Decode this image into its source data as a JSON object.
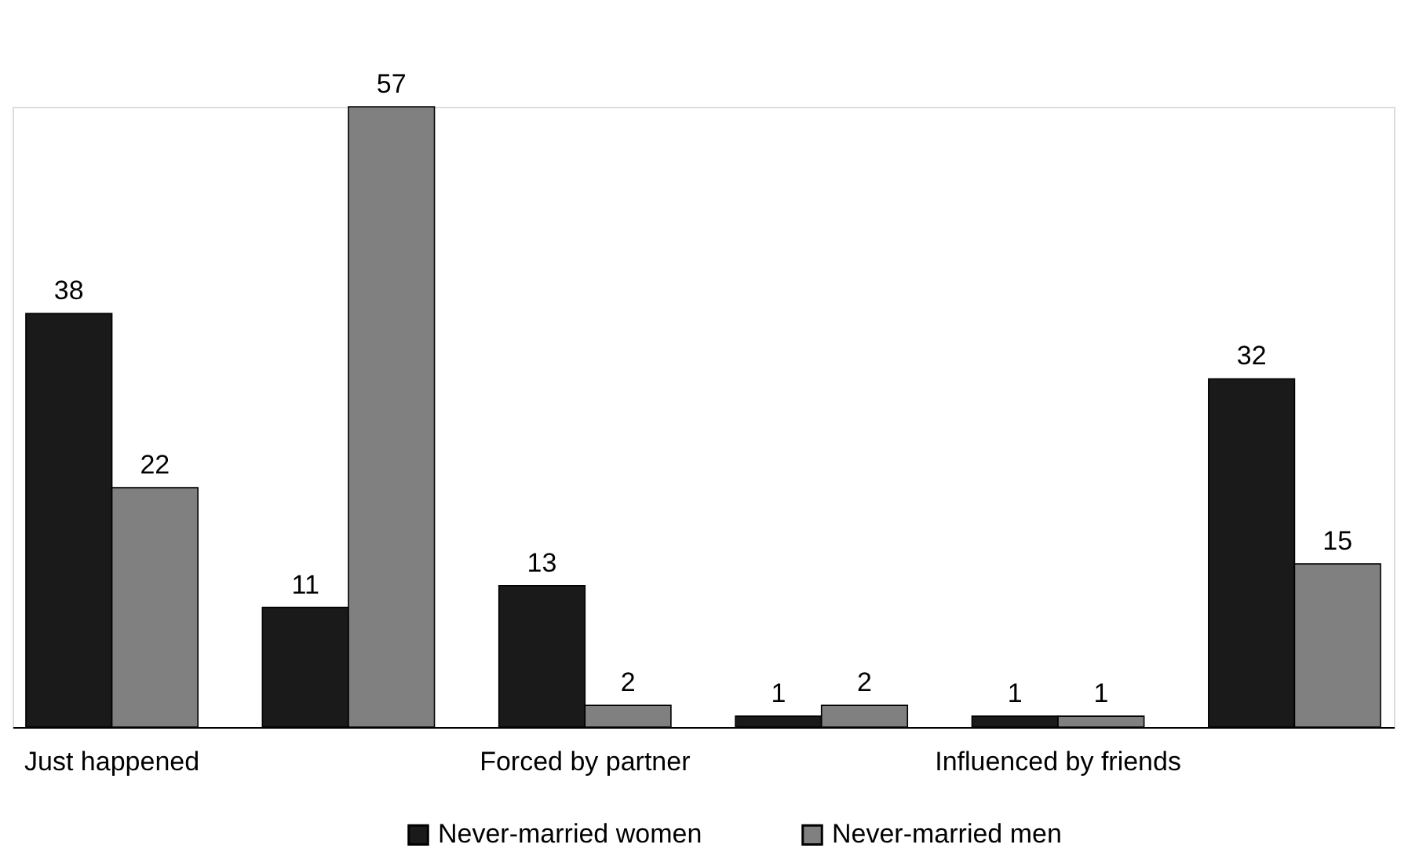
{
  "chart_data": {
    "type": "bar",
    "categories": [
      "Just happened",
      null,
      "Forced by partner",
      null,
      "Influenced by friends",
      null
    ],
    "series": [
      {
        "name": "Never-married women",
        "color": "#1a1a1a",
        "values": [
          38,
          11,
          13,
          1,
          1,
          32
        ]
      },
      {
        "name": "Never-married men",
        "color": "#808080",
        "values": [
          22,
          57,
          2,
          2,
          1,
          15
        ]
      }
    ],
    "data_labels": true,
    "legend": "bottom",
    "grid": false
  }
}
